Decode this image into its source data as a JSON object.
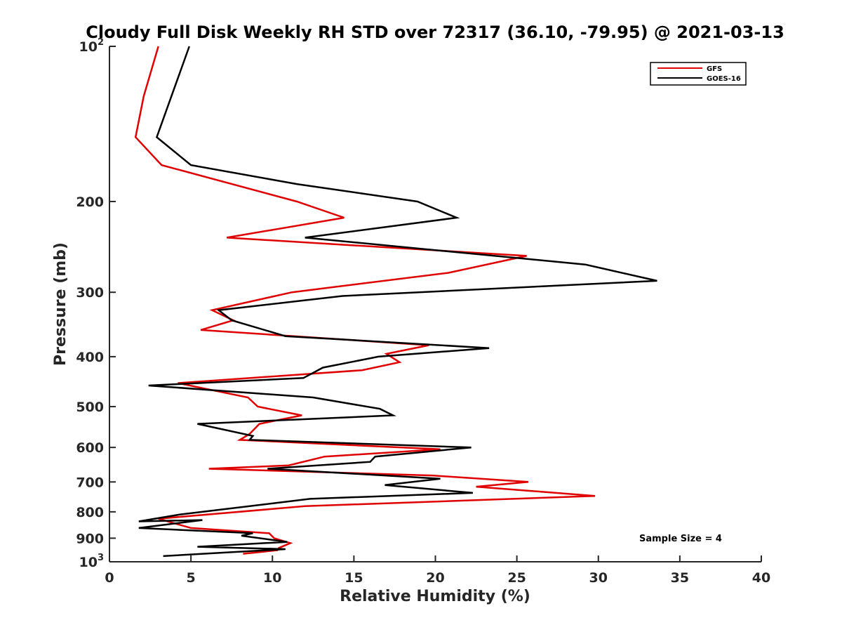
{
  "chart_data": {
    "type": "line",
    "title": "Cloudy Full Disk Weekly RH STD over 72317 (36.10, -79.95) @ 2021-03-13",
    "xlabel": "Relative Humidity (%)",
    "ylabel": "Pressure (mb)",
    "xlim": [
      0,
      40
    ],
    "ylim": [
      100,
      1000
    ],
    "yscale": "log",
    "y_reversed": true,
    "x_ticks": [
      0,
      5,
      10,
      15,
      20,
      25,
      30,
      35,
      40
    ],
    "x_tick_labels": [
      "0",
      "5",
      "10",
      "15",
      "20",
      "25",
      "30",
      "35",
      "40"
    ],
    "y_ticks": [
      100,
      200,
      300,
      400,
      500,
      600,
      700,
      800,
      900,
      1000
    ],
    "y_tick_labels": [
      {
        "base": "10",
        "sup": "2"
      },
      {
        "base": "200",
        "sup": ""
      },
      {
        "base": "300",
        "sup": ""
      },
      {
        "base": "400",
        "sup": ""
      },
      {
        "base": "500",
        "sup": ""
      },
      {
        "base": "600",
        "sup": ""
      },
      {
        "base": "700",
        "sup": ""
      },
      {
        "base": "800",
        "sup": ""
      },
      {
        "base": "900",
        "sup": ""
      },
      {
        "base": "10",
        "sup": "3"
      }
    ],
    "grid": false,
    "legend_position": "top-right",
    "annotation": "Sample Size = 4",
    "series": [
      {
        "name": "GFS",
        "color": "#e00000",
        "points": [
          [
            3.0,
            100
          ],
          [
            2.1,
            125
          ],
          [
            1.6,
            150
          ],
          [
            3.2,
            170
          ],
          [
            11.5,
            200
          ],
          [
            14.4,
            215
          ],
          [
            7.2,
            235
          ],
          [
            25.6,
            255
          ],
          [
            20.8,
            275
          ],
          [
            11.2,
            300
          ],
          [
            6.3,
            325
          ],
          [
            7.6,
            340
          ],
          [
            5.6,
            355
          ],
          [
            19.6,
            380
          ],
          [
            17.0,
            395
          ],
          [
            17.8,
            410
          ],
          [
            15.5,
            425
          ],
          [
            4.2,
            450
          ],
          [
            8.5,
            480
          ],
          [
            9.1,
            500
          ],
          [
            11.8,
            520
          ],
          [
            9.2,
            540
          ],
          [
            8.6,
            565
          ],
          [
            8.0,
            580
          ],
          [
            20.3,
            605
          ],
          [
            13.2,
            625
          ],
          [
            11.0,
            650
          ],
          [
            6.1,
            660
          ],
          [
            19.8,
            680
          ],
          [
            25.7,
            700
          ],
          [
            22.5,
            715
          ],
          [
            29.8,
            745
          ],
          [
            12.0,
            780
          ],
          [
            3.0,
            825
          ],
          [
            5.0,
            860
          ],
          [
            9.8,
            880
          ],
          [
            10.1,
            900
          ],
          [
            11.1,
            920
          ],
          [
            10.4,
            940
          ],
          [
            10.3,
            950
          ],
          [
            8.2,
            965
          ]
        ]
      },
      {
        "name": "GOES-16",
        "color": "#000000",
        "points": [
          [
            4.9,
            100
          ],
          [
            2.9,
            150
          ],
          [
            5.0,
            170
          ],
          [
            11.5,
            185
          ],
          [
            18.9,
            200
          ],
          [
            21.3,
            215
          ],
          [
            12.0,
            235
          ],
          [
            29.2,
            265
          ],
          [
            33.6,
            285
          ],
          [
            14.3,
            305
          ],
          [
            6.7,
            325
          ],
          [
            7.5,
            340
          ],
          [
            10.8,
            365
          ],
          [
            23.3,
            385
          ],
          [
            16.5,
            400
          ],
          [
            13.1,
            420
          ],
          [
            11.9,
            440
          ],
          [
            2.4,
            455
          ],
          [
            12.5,
            480
          ],
          [
            16.6,
            505
          ],
          [
            17.4,
            520
          ],
          [
            5.4,
            540
          ],
          [
            8.8,
            570
          ],
          [
            8.6,
            580
          ],
          [
            22.2,
            600
          ],
          [
            16.3,
            625
          ],
          [
            16.0,
            640
          ],
          [
            9.7,
            660
          ],
          [
            20.3,
            690
          ],
          [
            16.9,
            710
          ],
          [
            22.3,
            735
          ],
          [
            12.3,
            755
          ],
          [
            4.3,
            810
          ],
          [
            1.8,
            835
          ],
          [
            5.7,
            830
          ],
          [
            1.8,
            860
          ],
          [
            8.8,
            880
          ],
          [
            8.1,
            890
          ],
          [
            10.9,
            915
          ],
          [
            5.4,
            935
          ],
          [
            10.8,
            945
          ],
          [
            3.3,
            975
          ]
        ]
      }
    ]
  }
}
